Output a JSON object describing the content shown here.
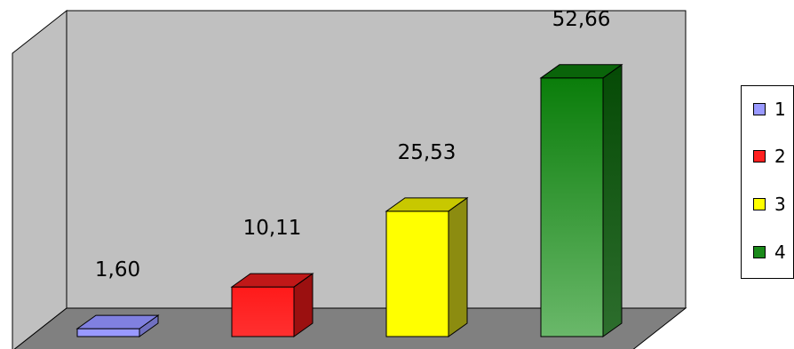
{
  "chart_data": {
    "type": "bar",
    "three_d": true,
    "title": "",
    "xlabel": "",
    "ylabel": "",
    "grid": false,
    "legend_position": "right",
    "categories": [
      "1",
      "2",
      "3",
      "4"
    ],
    "values": [
      1.6,
      10.11,
      25.53,
      52.66
    ],
    "value_labels": [
      "1,60",
      "10,11",
      "25,53",
      "52,66"
    ],
    "ylim": [
      0,
      60
    ],
    "colors": {
      "wall": "#c0c0c0",
      "floor": "#808080",
      "series": [
        "#9999ff",
        "#ff0000",
        "#ffff00",
        "#0a7d0a"
      ]
    },
    "legend": [
      {
        "label": "1",
        "color": "#9999ff"
      },
      {
        "label": "2",
        "color": "#ff2020"
      },
      {
        "label": "3",
        "color": "#ffff00"
      },
      {
        "label": "4",
        "color": "#1a8a1a"
      }
    ]
  }
}
